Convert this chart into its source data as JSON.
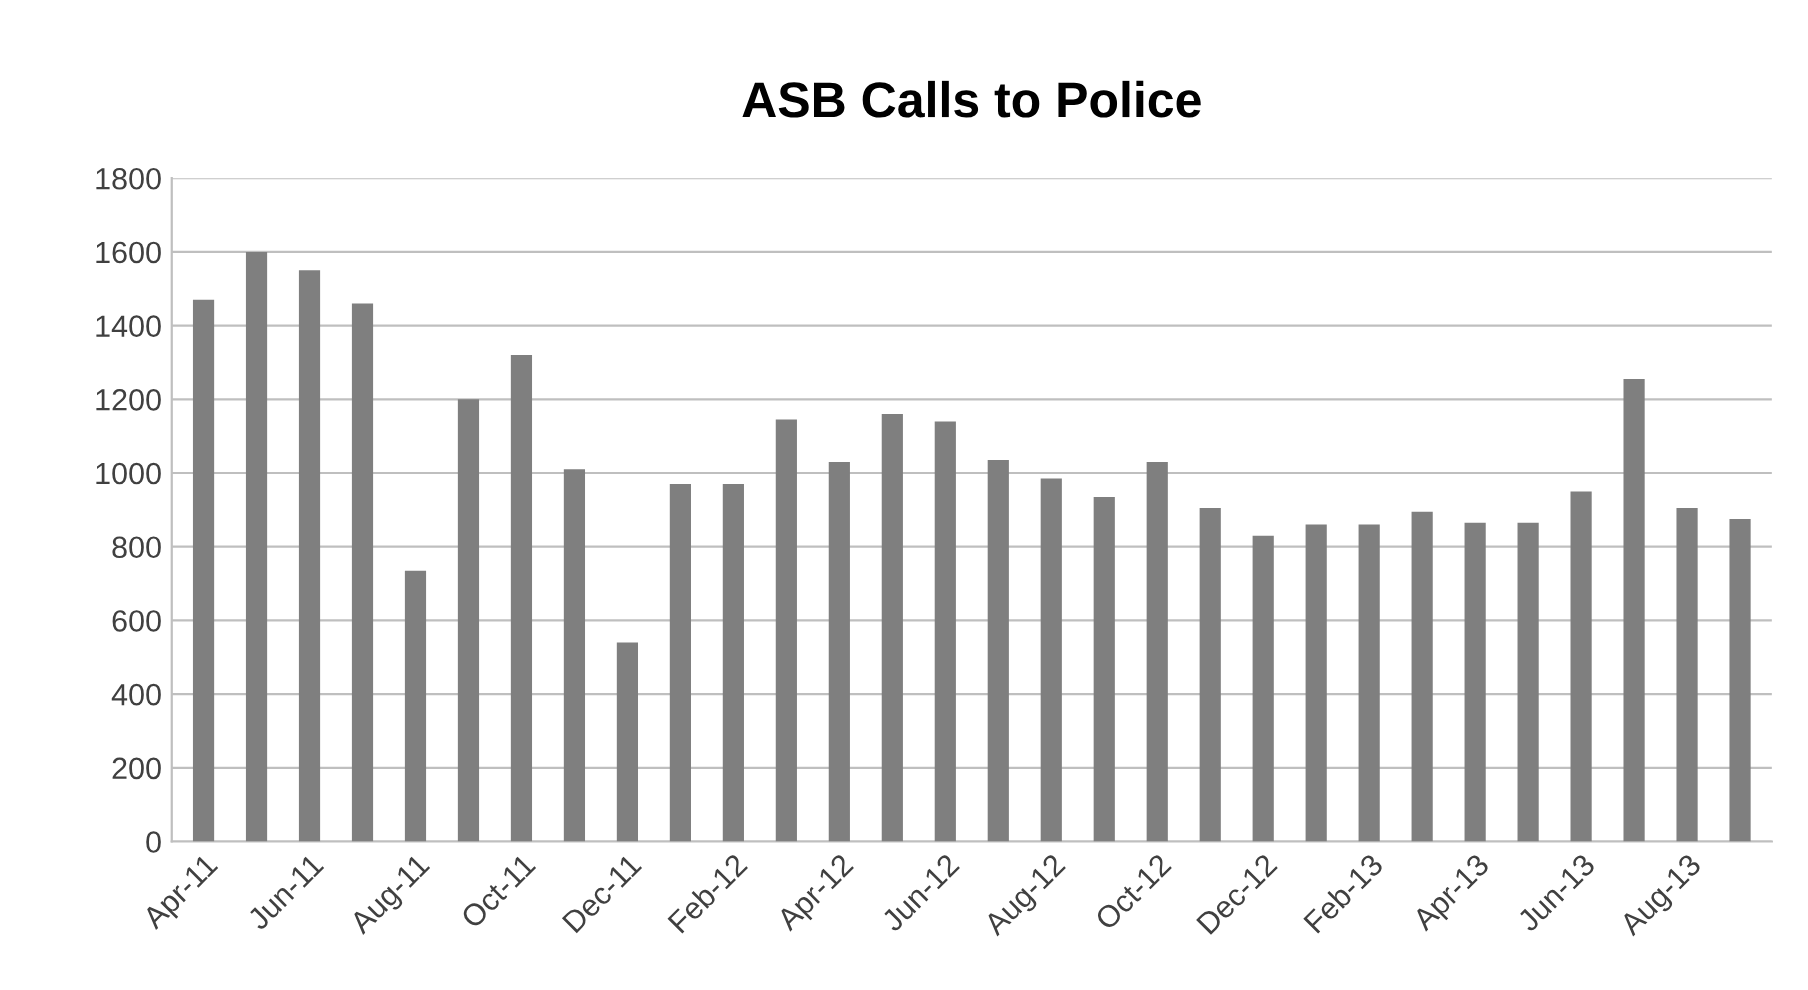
{
  "chart_data": {
    "type": "bar",
    "title": "ASB Calls to Police",
    "categories": [
      "Apr-11",
      null,
      "Jun-11",
      null,
      "Aug-11",
      null,
      "Oct-11",
      null,
      "Dec-11",
      null,
      "Feb-12",
      null,
      "Apr-12",
      null,
      "Jun-12",
      null,
      "Aug-12",
      null,
      "Oct-12",
      null,
      "Dec-12",
      null,
      "Feb-13",
      null,
      "Apr-13",
      null,
      "Jun-13",
      null,
      "Aug-13",
      null
    ],
    "values": [
      1470,
      1600,
      1550,
      1460,
      735,
      1200,
      1320,
      1010,
      540,
      970,
      970,
      1145,
      1030,
      1160,
      1140,
      1035,
      985,
      935,
      1030,
      905,
      830,
      860,
      860,
      895,
      865,
      865,
      950,
      1255,
      905,
      875
    ],
    "color": "#7f7f7f",
    "ylim": [
      0,
      1800
    ],
    "yticks": [
      0,
      200,
      400,
      600,
      800,
      1000,
      1200,
      1400,
      1600,
      1800
    ],
    "grid": "y"
  }
}
